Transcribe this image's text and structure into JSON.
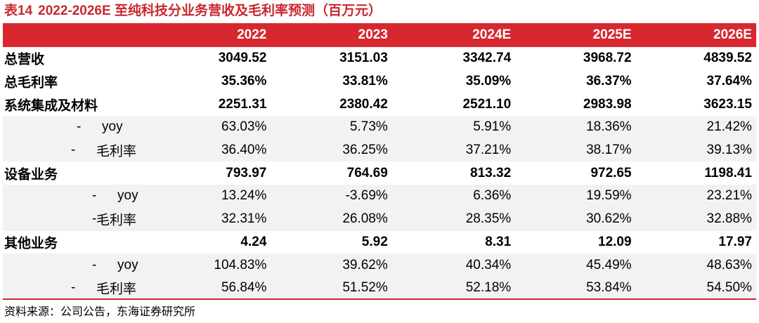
{
  "title": {
    "label": "表14",
    "text": "2022-2026E 至纯科技分业务营收及毛利率预测（百万元）"
  },
  "header": {
    "years": [
      "2022",
      "2023",
      "2024E",
      "2025E",
      "2026E"
    ]
  },
  "rows": [
    {
      "label": "总营收",
      "dash": "",
      "values": [
        "3049.52",
        "3151.03",
        "3342.74",
        "3968.72",
        "4839.52"
      ]
    },
    {
      "label": "总毛利率",
      "dash": "",
      "values": [
        "35.36%",
        "33.81%",
        "35.09%",
        "36.37%",
        "37.64%"
      ]
    },
    {
      "label": "系统集成及材料",
      "dash": "",
      "values": [
        "2251.31",
        "2380.42",
        "2521.10",
        "2983.98",
        "3623.15"
      ]
    },
    {
      "label": "yoy",
      "dash": "-",
      "values": [
        "63.03%",
        "5.73%",
        "5.91%",
        "18.36%",
        "21.42%"
      ]
    },
    {
      "label": "毛利率",
      "dash": "-",
      "values": [
        "36.40%",
        "36.25%",
        "37.21%",
        "38.17%",
        "39.13%"
      ]
    },
    {
      "label": "设备业务",
      "dash": "",
      "values": [
        "793.97",
        "764.69",
        "813.32",
        "972.65",
        "1198.41"
      ]
    },
    {
      "label": "yoy",
      "dash": "-",
      "values": [
        "13.24%",
        "-3.69%",
        "6.36%",
        "19.59%",
        "23.21%"
      ]
    },
    {
      "label": "毛利率",
      "dash": "-",
      "values": [
        "32.31%",
        "26.08%",
        "28.35%",
        "30.62%",
        "32.88%"
      ]
    },
    {
      "label": "其他业务",
      "dash": "",
      "values": [
        "4.24",
        "5.92",
        "8.31",
        "12.09",
        "17.97"
      ]
    },
    {
      "label": "yoy",
      "dash": "-",
      "values": [
        "104.83%",
        "39.62%",
        "40.34%",
        "45.49%",
        "48.63%"
      ]
    },
    {
      "label": "毛利率",
      "dash": "-",
      "values": [
        "56.84%",
        "51.52%",
        "52.18%",
        "53.84%",
        "54.50%"
      ]
    }
  ],
  "source": "资料来源：公司公告，东海证券研究所",
  "colors": {
    "accent": "#d7282f",
    "shade": "#f2f2f2"
  }
}
